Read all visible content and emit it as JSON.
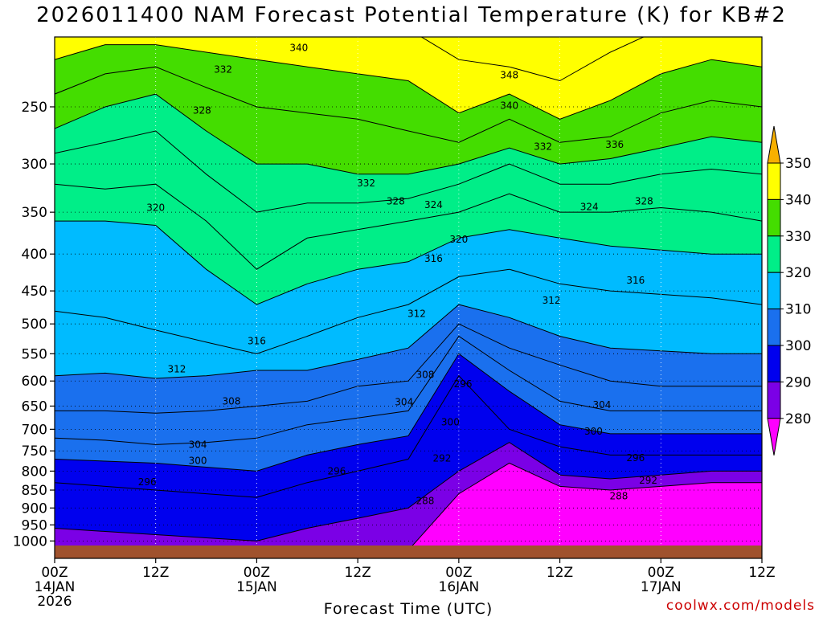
{
  "page": {
    "title": "2026011400 NAM Forecast Potential Temperature (K) for KB#2",
    "credit": "coolwx.com/models"
  },
  "chart_data": {
    "type": "heatmap",
    "title": "2026011400 NAM Forecast Potential Temperature (K) for KB#2",
    "xlabel": "Forecast Time (UTC)",
    "ylabel": "",
    "x_ticks": [
      {
        "h": 0,
        "lines": [
          "00Z",
          "14JAN",
          "2026"
        ]
      },
      {
        "h": 12,
        "lines": [
          "12Z"
        ]
      },
      {
        "h": 24,
        "lines": [
          "00Z",
          "15JAN"
        ]
      },
      {
        "h": 36,
        "lines": [
          "12Z"
        ]
      },
      {
        "h": 48,
        "lines": [
          "00Z",
          "16JAN"
        ]
      },
      {
        "h": 60,
        "lines": [
          "12Z"
        ]
      },
      {
        "h": 72,
        "lines": [
          "00Z",
          "17JAN"
        ]
      },
      {
        "h": 84,
        "lines": [
          "12Z"
        ]
      }
    ],
    "xlim": [
      0,
      84
    ],
    "y_ticks": [
      250,
      300,
      350,
      400,
      450,
      500,
      550,
      600,
      650,
      700,
      750,
      800,
      850,
      900,
      950,
      1000
    ],
    "ylim_hPa": [
      200,
      1025
    ],
    "y_scale": "log-pressure",
    "grid": true,
    "colorbar": {
      "levels": [
        350,
        340,
        330,
        320,
        310,
        300,
        290,
        280
      ],
      "colors": [
        "#f7b000",
        "#ffff00",
        "#44dd00",
        "#00ee88",
        "#00bbff",
        "#1a70ee",
        "#0000ee",
        "#7b00e6",
        "#ff00ff"
      ]
    },
    "level_values": [
      286,
      290,
      296,
      300,
      304,
      308,
      312,
      316,
      320,
      324,
      328,
      332,
      336,
      340,
      348
    ],
    "profiles": [
      {
        "h": 0,
        "theta": [
          286,
          290,
          296,
          300,
          304,
          308,
          312,
          316,
          320,
          324,
          328,
          332,
          336,
          340,
          348
        ],
        "p": [
          1030,
          960,
          830,
          770,
          720,
          660,
          590,
          480,
          360,
          320,
          290,
          268,
          240,
          215,
          185
        ]
      },
      {
        "h": 6,
        "theta": [
          286,
          290,
          296,
          300,
          304,
          308,
          312,
          316,
          320,
          324,
          328,
          332,
          336,
          340,
          348
        ],
        "p": [
          1030,
          970,
          840,
          775,
          725,
          660,
          585,
          490,
          360,
          325,
          280,
          250,
          225,
          205,
          185
        ]
      },
      {
        "h": 12,
        "theta": [
          286,
          290,
          296,
          300,
          304,
          308,
          312,
          316,
          320,
          324,
          328,
          332,
          336,
          340,
          348
        ],
        "p": [
          1030,
          980,
          850,
          780,
          735,
          665,
          595,
          510,
          365,
          320,
          270,
          240,
          220,
          205,
          185
        ]
      },
      {
        "h": 18,
        "theta": [
          286,
          290,
          296,
          300,
          304,
          308,
          312,
          316,
          320,
          324,
          328,
          332,
          336,
          340,
          348
        ],
        "p": [
          1030,
          990,
          860,
          790,
          730,
          660,
          590,
          530,
          420,
          360,
          310,
          270,
          235,
          210,
          185
        ]
      },
      {
        "h": 24,
        "theta": [
          286,
          290,
          296,
          300,
          304,
          308,
          312,
          316,
          320,
          324,
          328,
          332,
          336,
          340,
          348
        ],
        "p": [
          1030,
          1000,
          870,
          800,
          720,
          650,
          580,
          550,
          470,
          420,
          350,
          300,
          250,
          215,
          185
        ]
      },
      {
        "h": 30,
        "theta": [
          286,
          290,
          296,
          300,
          304,
          308,
          312,
          316,
          320,
          324,
          328,
          332,
          336,
          340,
          348
        ],
        "p": [
          1030,
          960,
          830,
          760,
          690,
          640,
          580,
          520,
          440,
          380,
          340,
          300,
          255,
          220,
          185
        ]
      },
      {
        "h": 36,
        "theta": [
          286,
          290,
          296,
          300,
          304,
          308,
          312,
          316,
          320,
          324,
          328,
          332,
          336,
          340,
          348
        ],
        "p": [
          1030,
          930,
          800,
          735,
          675,
          610,
          560,
          490,
          420,
          370,
          340,
          310,
          260,
          225,
          190
        ]
      },
      {
        "h": 42,
        "theta": [
          286,
          290,
          296,
          300,
          304,
          308,
          312,
          316,
          320,
          324,
          328,
          332,
          336,
          340,
          348
        ],
        "p": [
          1030,
          900,
          770,
          715,
          660,
          600,
          540,
          470,
          410,
          360,
          335,
          310,
          270,
          230,
          195
        ]
      },
      {
        "h": 48,
        "theta": [
          286,
          290,
          296,
          300,
          304,
          308,
          312,
          316,
          320,
          324,
          328,
          332,
          336,
          340,
          348
        ],
        "p": [
          860,
          800,
          590,
          550,
          520,
          500,
          470,
          430,
          380,
          350,
          320,
          300,
          280,
          255,
          215
        ]
      },
      {
        "h": 54,
        "theta": [
          286,
          290,
          296,
          300,
          304,
          308,
          312,
          316,
          320,
          324,
          328,
          332,
          336,
          340,
          348
        ],
        "p": [
          780,
          730,
          700,
          620,
          580,
          540,
          490,
          420,
          370,
          330,
          300,
          285,
          260,
          240,
          220
        ]
      },
      {
        "h": 60,
        "theta": [
          286,
          290,
          296,
          300,
          304,
          308,
          312,
          316,
          320,
          324,
          328,
          332,
          336,
          340,
          348
        ],
        "p": [
          840,
          810,
          740,
          690,
          640,
          570,
          520,
          440,
          380,
          350,
          320,
          300,
          280,
          260,
          230
        ]
      },
      {
        "h": 66,
        "theta": [
          286,
          290,
          296,
          300,
          304,
          308,
          312,
          316,
          320,
          324,
          328,
          332,
          336,
          340,
          348
        ],
        "p": [
          850,
          820,
          760,
          710,
          660,
          600,
          540,
          450,
          390,
          350,
          320,
          295,
          275,
          245,
          210
        ]
      },
      {
        "h": 72,
        "theta": [
          286,
          290,
          296,
          300,
          304,
          308,
          312,
          316,
          320,
          324,
          328,
          332,
          336,
          340,
          348
        ],
        "p": [
          840,
          810,
          760,
          710,
          660,
          610,
          545,
          455,
          395,
          345,
          310,
          285,
          255,
          225,
          195
        ]
      },
      {
        "h": 78,
        "theta": [
          286,
          290,
          296,
          300,
          304,
          308,
          312,
          316,
          320,
          324,
          328,
          332,
          336,
          340,
          348
        ],
        "p": [
          830,
          800,
          760,
          710,
          660,
          610,
          550,
          460,
          400,
          350,
          305,
          275,
          245,
          215,
          190
        ]
      },
      {
        "h": 84,
        "theta": [
          286,
          290,
          296,
          300,
          304,
          308,
          312,
          316,
          320,
          324,
          328,
          332,
          336,
          340,
          348
        ],
        "p": [
          830,
          800,
          760,
          710,
          660,
          610,
          550,
          470,
          400,
          360,
          310,
          280,
          250,
          220,
          190
        ]
      }
    ],
    "contour_labels": [
      {
        "text": "340",
        "h": 29,
        "p": 207
      },
      {
        "text": "332",
        "h": 20,
        "p": 222
      },
      {
        "text": "348",
        "h": 54,
        "p": 226
      },
      {
        "text": "328",
        "h": 17.5,
        "p": 253
      },
      {
        "text": "340",
        "h": 54,
        "p": 249
      },
      {
        "text": "332",
        "h": 58,
        "p": 284
      },
      {
        "text": "336",
        "h": 66.5,
        "p": 282
      },
      {
        "text": "332",
        "h": 37,
        "p": 319
      },
      {
        "text": "328",
        "h": 40.5,
        "p": 338
      },
      {
        "text": "324",
        "h": 45,
        "p": 342
      },
      {
        "text": "324",
        "h": 63.5,
        "p": 344
      },
      {
        "text": "328",
        "h": 70,
        "p": 338
      },
      {
        "text": "320",
        "h": 12,
        "p": 345
      },
      {
        "text": "320",
        "h": 48,
        "p": 382
      },
      {
        "text": "316",
        "h": 45,
        "p": 406
      },
      {
        "text": "316",
        "h": 69,
        "p": 435
      },
      {
        "text": "312",
        "h": 59,
        "p": 464
      },
      {
        "text": "312",
        "h": 43,
        "p": 484
      },
      {
        "text": "316",
        "h": 24,
        "p": 528
      },
      {
        "text": "312",
        "h": 14.5,
        "p": 578
      },
      {
        "text": "308",
        "h": 44,
        "p": 588
      },
      {
        "text": "296",
        "h": 48.5,
        "p": 606
      },
      {
        "text": "308",
        "h": 21,
        "p": 640
      },
      {
        "text": "304",
        "h": 41.5,
        "p": 642
      },
      {
        "text": "304",
        "h": 65,
        "p": 648
      },
      {
        "text": "300",
        "h": 47,
        "p": 684
      },
      {
        "text": "300",
        "h": 64,
        "p": 705
      },
      {
        "text": "304",
        "h": 17,
        "p": 735
      },
      {
        "text": "300",
        "h": 17,
        "p": 774
      },
      {
        "text": "296",
        "h": 69,
        "p": 767
      },
      {
        "text": "292",
        "h": 46,
        "p": 768
      },
      {
        "text": "296",
        "h": 33.5,
        "p": 800
      },
      {
        "text": "292",
        "h": 70.5,
        "p": 824
      },
      {
        "text": "296",
        "h": 11,
        "p": 828
      },
      {
        "text": "288",
        "h": 67,
        "p": 867
      },
      {
        "text": "288",
        "h": 44,
        "p": 880
      }
    ]
  }
}
